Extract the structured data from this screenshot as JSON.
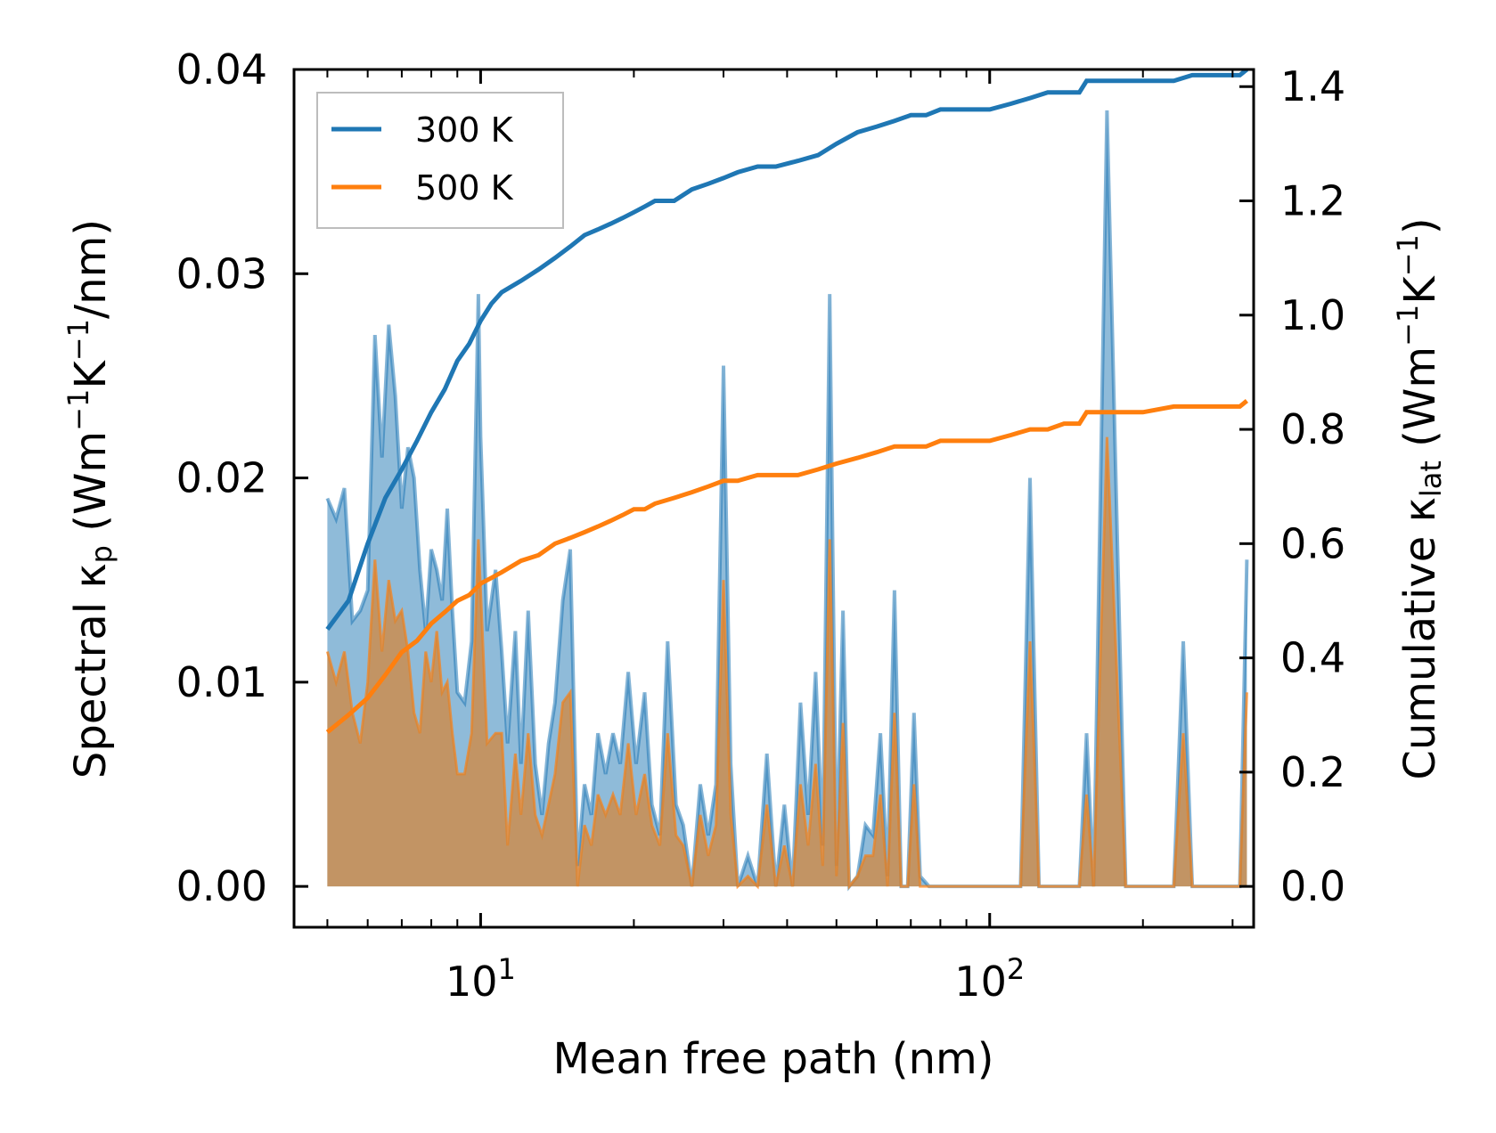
{
  "chart_data": {
    "type": "line",
    "xscale": "log",
    "xlabel": "Mean free path (nm)",
    "ylabel_left": {
      "main": "Spectral κ",
      "sub": "p",
      "unit_open": " (Wm",
      "unit_exp1": "−1",
      "unit_mid": "K",
      "unit_exp2": "−1",
      "unit_close": "/nm)"
    },
    "ylabel_right": {
      "main": "Cumulative κ",
      "sub": "lat",
      "unit_open": " (Wm",
      "unit_exp1": "−1",
      "unit_mid": "K",
      "unit_exp2": "−1",
      "unit_close": ")"
    },
    "xlim": [
      4.3,
      330
    ],
    "ylim_left": [
      -0.002,
      0.04
    ],
    "ylim_right": [
      -0.0715,
      1.43
    ],
    "x_ticks": [
      {
        "base": "10",
        "exp": "1",
        "value": 10
      },
      {
        "base": "10",
        "exp": "2",
        "value": 100
      }
    ],
    "y_ticks_left": [
      "0.00",
      "0.01",
      "0.02",
      "0.03",
      "0.04"
    ],
    "y_ticks_right": [
      "0.0",
      "0.2",
      "0.4",
      "0.6",
      "0.8",
      "1.0",
      "1.2",
      "1.4"
    ],
    "legend": [
      {
        "label": "300 K",
        "color": "#1f77b4"
      },
      {
        "label": "500 K",
        "color": "#ff7f0e"
      }
    ],
    "spectral_x": [
      5.0,
      5.2,
      5.4,
      5.6,
      5.8,
      6.0,
      6.2,
      6.4,
      6.6,
      6.8,
      7.0,
      7.2,
      7.4,
      7.6,
      7.8,
      8.0,
      8.2,
      8.4,
      8.6,
      8.8,
      9.0,
      9.3,
      9.6,
      9.9,
      10.0,
      10.3,
      10.7,
      11.0,
      11.3,
      11.7,
      12.0,
      12.4,
      12.8,
      13.2,
      13.6,
      14.0,
      14.5,
      15.0,
      15.5,
      16.0,
      16.5,
      17.0,
      17.6,
      18.2,
      18.8,
      19.5,
      20.2,
      21.0,
      21.7,
      22.5,
      23.3,
      24.2,
      25.0,
      26.0,
      27.0,
      28.0,
      29.0,
      30.0,
      31.0,
      32.0,
      33.5,
      35.0,
      36.5,
      38.0,
      39.5,
      41.0,
      42.5,
      44.0,
      45.5,
      47.0,
      48.5,
      50.0,
      51.5,
      53.0,
      55.0,
      57.0,
      59.0,
      61.0,
      63.0,
      65.0,
      67.0,
      69.0,
      71.0,
      73.0,
      76.0,
      79.0,
      82.0,
      86.0,
      90.0,
      95.0,
      100.0,
      105.0,
      110.0,
      115.0,
      120.0,
      125.0,
      130.0,
      140.0,
      145.0,
      150.0,
      155.0,
      160.0,
      170.0,
      185.0,
      200.0,
      215.0,
      230.0,
      240.0,
      250.0,
      270.0,
      290.0,
      310.0,
      320.0
    ],
    "spectral_300K": [
      0.019,
      0.018,
      0.0195,
      0.013,
      0.0135,
      0.0145,
      0.027,
      0.021,
      0.0275,
      0.024,
      0.0185,
      0.0215,
      0.02,
      0.0155,
      0.0125,
      0.0165,
      0.0155,
      0.014,
      0.0185,
      0.0135,
      0.0095,
      0.009,
      0.012,
      0.029,
      0.022,
      0.0125,
      0.0155,
      0.0115,
      0.007,
      0.0125,
      0.006,
      0.0135,
      0.006,
      0.0035,
      0.007,
      0.009,
      0.014,
      0.0165,
      0.001,
      0.005,
      0.0035,
      0.0075,
      0.0055,
      0.0075,
      0.006,
      0.0105,
      0.006,
      0.0095,
      0.004,
      0.0025,
      0.012,
      0.004,
      0.003,
      0.0,
      0.005,
      0.0025,
      0.005,
      0.0255,
      0.006,
      0.0,
      0.0015,
      0.0,
      0.0065,
      0.0,
      0.004,
      0.0,
      0.009,
      0.0035,
      0.0105,
      0.002,
      0.029,
      0.001,
      0.0135,
      0.0,
      0.0005,
      0.003,
      0.0025,
      0.0075,
      0.0005,
      0.0145,
      0.0,
      0.0,
      0.0085,
      0.0005,
      0.0,
      0.0,
      0.0,
      0.0,
      0.0,
      0.0,
      0.0,
      0.0,
      0.0,
      0.0,
      0.02,
      0.0,
      0.0,
      0.0,
      0.0,
      0.0,
      0.0075,
      0.0,
      0.038,
      0.0,
      0.0,
      0.0,
      0.0,
      0.012,
      0.0,
      0.0,
      0.0,
      0.0,
      0.016
    ],
    "spectral_500K": [
      0.0115,
      0.01,
      0.0115,
      0.0085,
      0.007,
      0.01,
      0.016,
      0.0115,
      0.015,
      0.013,
      0.0135,
      0.0115,
      0.0085,
      0.0075,
      0.0115,
      0.01,
      0.0125,
      0.0095,
      0.01,
      0.0075,
      0.0055,
      0.0055,
      0.0075,
      0.017,
      0.0145,
      0.007,
      0.0075,
      0.0075,
      0.002,
      0.0065,
      0.0035,
      0.0075,
      0.0035,
      0.0025,
      0.004,
      0.0055,
      0.009,
      0.0095,
      0.0,
      0.003,
      0.002,
      0.0045,
      0.0035,
      0.0045,
      0.0035,
      0.007,
      0.0035,
      0.0055,
      0.003,
      0.002,
      0.0075,
      0.0025,
      0.002,
      0.0,
      0.0035,
      0.0015,
      0.003,
      0.015,
      0.0035,
      0.0,
      0.0005,
      0.0,
      0.004,
      0.0,
      0.002,
      0.0,
      0.005,
      0.002,
      0.006,
      0.001,
      0.017,
      0.0005,
      0.008,
      0.0,
      0.0005,
      0.0015,
      0.0015,
      0.0045,
      0.0,
      0.0085,
      0.0,
      0.0,
      0.005,
      0.0,
      0.0,
      0.0,
      0.0,
      0.0,
      0.0,
      0.0,
      0.0,
      0.0,
      0.0,
      0.0,
      0.012,
      0.0,
      0.0,
      0.0,
      0.0,
      0.0,
      0.0045,
      0.0,
      0.022,
      0.0,
      0.0,
      0.0,
      0.0,
      0.0075,
      0.0,
      0.0,
      0.0,
      0.0,
      0.0095
    ],
    "cumulative_x": [
      5.0,
      5.5,
      6.0,
      6.5,
      7.0,
      7.5,
      8.0,
      8.5,
      9.0,
      9.5,
      10.0,
      10.5,
      11.0,
      12.0,
      13.0,
      14.0,
      15.0,
      16.0,
      17.0,
      18.0,
      19.0,
      20.0,
      21.0,
      22.0,
      24.0,
      26.0,
      28.0,
      30.0,
      32.0,
      35.0,
      38.0,
      42.0,
      46.0,
      50.0,
      55.0,
      60.0,
      65.0,
      70.0,
      75.0,
      80.0,
      90.0,
      100.0,
      110.0,
      120.0,
      130.0,
      140.0,
      150.0,
      155.0,
      170.0,
      200.0,
      230.0,
      250.0,
      280.0,
      310.0,
      320.0
    ],
    "cumulative_300K": [
      0.45,
      0.5,
      0.6,
      0.68,
      0.73,
      0.78,
      0.83,
      0.87,
      0.92,
      0.95,
      0.99,
      1.02,
      1.04,
      1.06,
      1.08,
      1.1,
      1.12,
      1.14,
      1.15,
      1.16,
      1.17,
      1.18,
      1.19,
      1.2,
      1.2,
      1.22,
      1.23,
      1.24,
      1.25,
      1.26,
      1.26,
      1.27,
      1.28,
      1.3,
      1.32,
      1.33,
      1.34,
      1.35,
      1.35,
      1.36,
      1.36,
      1.36,
      1.37,
      1.38,
      1.39,
      1.39,
      1.39,
      1.41,
      1.41,
      1.41,
      1.41,
      1.42,
      1.42,
      1.42,
      1.43
    ],
    "cumulative_500K": [
      0.27,
      0.3,
      0.33,
      0.37,
      0.41,
      0.43,
      0.46,
      0.48,
      0.5,
      0.51,
      0.53,
      0.54,
      0.55,
      0.57,
      0.58,
      0.6,
      0.61,
      0.62,
      0.63,
      0.64,
      0.65,
      0.66,
      0.66,
      0.67,
      0.68,
      0.69,
      0.7,
      0.71,
      0.71,
      0.72,
      0.72,
      0.72,
      0.73,
      0.74,
      0.75,
      0.76,
      0.77,
      0.77,
      0.77,
      0.78,
      0.78,
      0.78,
      0.79,
      0.8,
      0.8,
      0.81,
      0.81,
      0.83,
      0.83,
      0.83,
      0.84,
      0.84,
      0.84,
      0.84,
      0.85
    ]
  }
}
